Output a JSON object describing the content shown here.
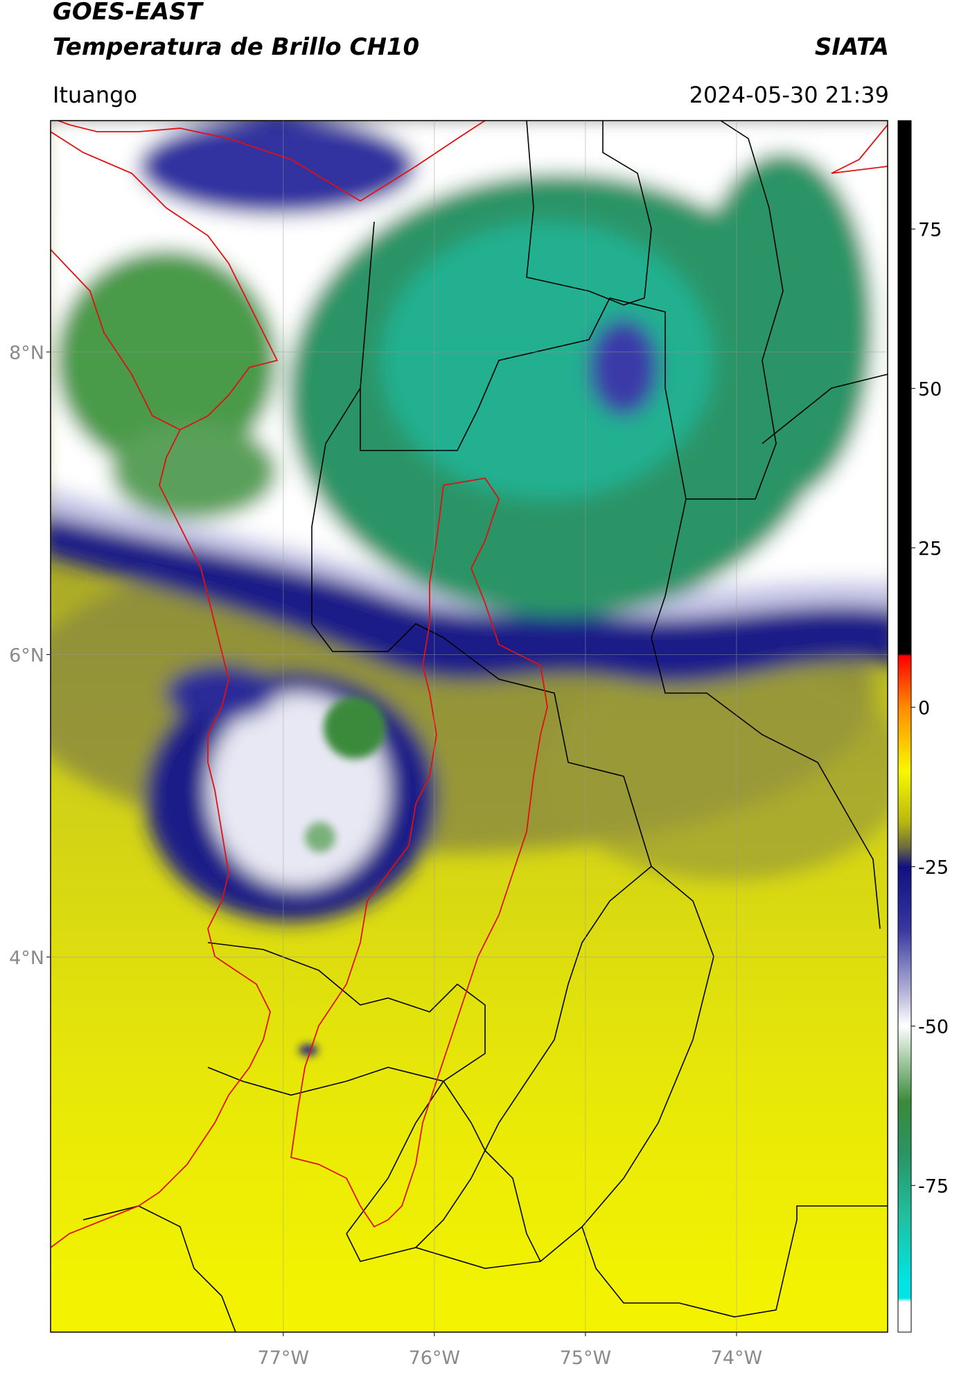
{
  "header": {
    "title": "GOES-EAST",
    "subtitle": "Temperatura de Brillo CH10",
    "org": "SIATA",
    "location": "Ituango",
    "datetime": "2024-05-30 21:39"
  },
  "map": {
    "lon_range": [
      -78.54,
      -73.0
    ],
    "lat_range": [
      1.52,
      9.53
    ],
    "grid": true,
    "lat_ticks": [
      {
        "value": 8,
        "label": "8°N"
      },
      {
        "value": 6,
        "label": "6°N"
      },
      {
        "value": 4,
        "label": "4°N"
      }
    ],
    "lon_ticks": [
      {
        "value": -77,
        "label": "77°W"
      },
      {
        "value": -76,
        "label": "76°W"
      },
      {
        "value": -75,
        "label": "75°W"
      },
      {
        "value": -74,
        "label": "74°W"
      }
    ]
  },
  "colorbar": {
    "range": [
      -98,
      92
    ],
    "ticks": [
      -75,
      -50,
      -25,
      0,
      25,
      50,
      75
    ]
  }
}
